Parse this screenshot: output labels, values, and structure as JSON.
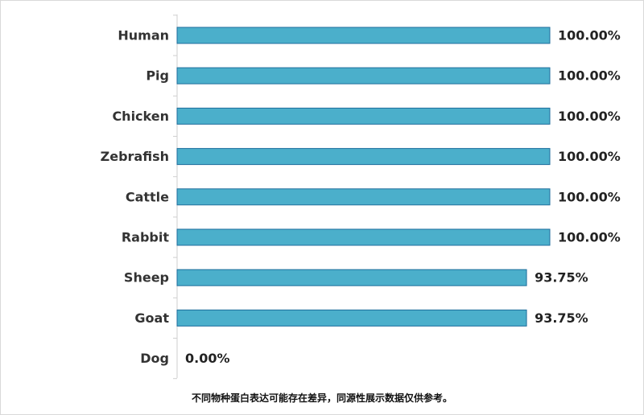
{
  "chart_data": {
    "type": "bar",
    "orientation": "horizontal",
    "categories": [
      "Human",
      "Pig",
      "Chicken",
      "Zebrafish",
      "Cattle",
      "Rabbit",
      "Sheep",
      "Goat",
      "Dog"
    ],
    "values": [
      100.0,
      100.0,
      100.0,
      100.0,
      100.0,
      100.0,
      93.75,
      93.75,
      0.0
    ],
    "value_labels": [
      "100.00%",
      "100.00%",
      "100.00%",
      "100.00%",
      "100.00%",
      "100.00%",
      "93.75%",
      "93.75%",
      "0.00%"
    ],
    "xlim": [
      0,
      100
    ],
    "grid": false,
    "bar_color": "#4bafcb",
    "bar_edge_color": "#1f6e9c"
  },
  "footnote": "不同物种蛋白表达可能存在差异，同源性展示数据仅供参考。"
}
